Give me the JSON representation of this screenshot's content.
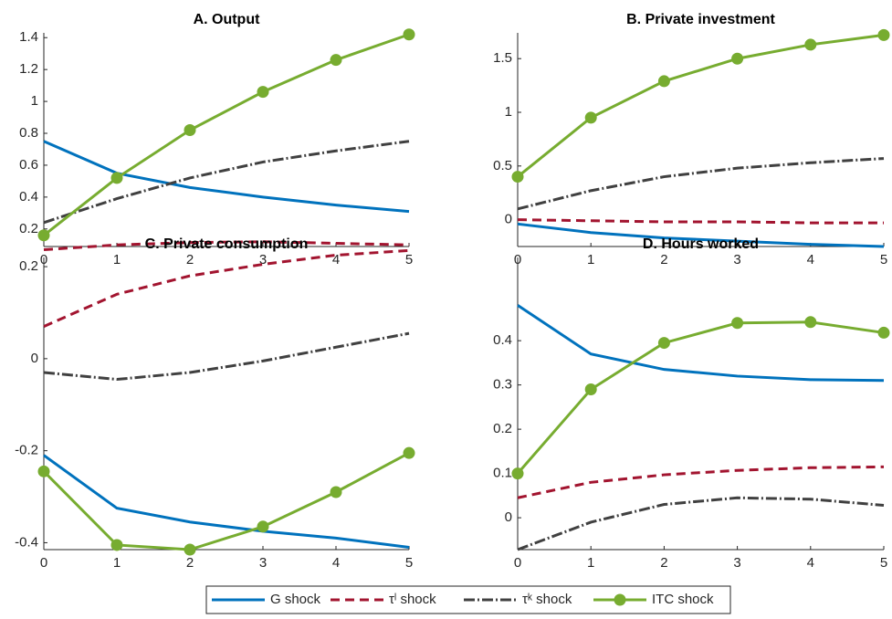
{
  "chart_data": [
    {
      "type": "line",
      "title": "A. Output",
      "x": [
        0,
        1,
        2,
        3,
        4,
        5
      ],
      "xlim": [
        0,
        5
      ],
      "xticks": [
        0,
        1,
        2,
        3,
        4,
        5
      ],
      "ylim": [
        0.09,
        1.43
      ],
      "yticks": [
        0.2,
        0.4,
        0.6,
        0.8,
        1,
        1.2,
        1.4
      ],
      "series": [
        {
          "color": "#0072bd",
          "dash": "solid",
          "marker": "none",
          "values": [
            0.75,
            0.55,
            0.46,
            0.4,
            0.35,
            0.31
          ]
        },
        {
          "color": "#a2142f",
          "dash": "dashed",
          "marker": "none",
          "values": [
            0.07,
            0.1,
            0.115,
            0.12,
            0.11,
            0.1
          ]
        },
        {
          "color": "#404040",
          "dash": "dashdot",
          "marker": "none",
          "values": [
            0.24,
            0.39,
            0.52,
            0.62,
            0.69,
            0.75
          ]
        },
        {
          "color": "#77ac30",
          "dash": "solid",
          "marker": "circle",
          "values": [
            0.16,
            0.52,
            0.82,
            1.06,
            1.26,
            1.42
          ]
        }
      ]
    },
    {
      "type": "line",
      "title": "B. Private investment",
      "x": [
        0,
        1,
        2,
        3,
        4,
        5
      ],
      "xlim": [
        0,
        5
      ],
      "xticks": [
        0,
        1,
        2,
        3,
        4,
        5
      ],
      "ylim": [
        -0.25,
        1.74
      ],
      "yticks": [
        0,
        0.5,
        1,
        1.5
      ],
      "series": [
        {
          "color": "#0072bd",
          "dash": "solid",
          "marker": "none",
          "values": [
            -0.04,
            -0.12,
            -0.17,
            -0.2,
            -0.23,
            -0.25
          ]
        },
        {
          "color": "#a2142f",
          "dash": "dashed",
          "marker": "none",
          "values": [
            0,
            -0.01,
            -0.02,
            -0.02,
            -0.03,
            -0.03
          ]
        },
        {
          "color": "#404040",
          "dash": "dashdot",
          "marker": "none",
          "values": [
            0.1,
            0.27,
            0.4,
            0.48,
            0.53,
            0.57
          ]
        },
        {
          "color": "#77ac30",
          "dash": "solid",
          "marker": "circle",
          "values": [
            0.4,
            0.95,
            1.29,
            1.5,
            1.63,
            1.72
          ]
        }
      ]
    },
    {
      "type": "line",
      "title": "C. Private consumption",
      "x": [
        0,
        1,
        2,
        3,
        4,
        5
      ],
      "xlim": [
        0,
        5
      ],
      "xticks": [
        0,
        1,
        2,
        3,
        4,
        5
      ],
      "ylim": [
        -0.415,
        0.22
      ],
      "yticks": [
        -0.4,
        -0.2,
        0,
        0.2
      ],
      "series": [
        {
          "color": "#0072bd",
          "dash": "solid",
          "marker": "none",
          "values": [
            -0.21,
            -0.325,
            -0.355,
            -0.375,
            -0.39,
            -0.41
          ]
        },
        {
          "color": "#a2142f",
          "dash": "dashed",
          "marker": "none",
          "values": [
            0.07,
            0.14,
            0.18,
            0.205,
            0.225,
            0.235
          ]
        },
        {
          "color": "#404040",
          "dash": "dashdot",
          "marker": "none",
          "values": [
            -0.03,
            -0.045,
            -0.03,
            -0.005,
            0.025,
            0.055
          ]
        },
        {
          "color": "#77ac30",
          "dash": "solid",
          "marker": "circle",
          "values": [
            -0.245,
            -0.405,
            -0.415,
            -0.365,
            -0.29,
            -0.205
          ]
        }
      ]
    },
    {
      "type": "line",
      "title": "D. Hours worked",
      "x": [
        0,
        1,
        2,
        3,
        4,
        5
      ],
      "xlim": [
        0,
        5
      ],
      "xticks": [
        0,
        1,
        2,
        3,
        4,
        5
      ],
      "ylim": [
        -0.072,
        0.588
      ],
      "yticks": [
        0,
        0.1,
        0.2,
        0.3,
        0.4
      ],
      "series": [
        {
          "color": "#0072bd",
          "dash": "solid",
          "marker": "none",
          "values": [
            0.48,
            0.37,
            0.335,
            0.32,
            0.312,
            0.31
          ]
        },
        {
          "color": "#a2142f",
          "dash": "dashed",
          "marker": "none",
          "values": [
            0.045,
            0.08,
            0.097,
            0.107,
            0.113,
            0.115
          ]
        },
        {
          "color": "#404040",
          "dash": "dashdot",
          "marker": "none",
          "values": [
            -0.072,
            -0.01,
            0.03,
            0.045,
            0.042,
            0.028
          ]
        },
        {
          "color": "#77ac30",
          "dash": "solid",
          "marker": "circle",
          "values": [
            0.1,
            0.29,
            0.395,
            0.44,
            0.442,
            0.418
          ]
        }
      ]
    }
  ],
  "legend": {
    "entries": [
      "G shock",
      "τˡ shock",
      "τᵏ shock",
      "ITC shock"
    ]
  }
}
